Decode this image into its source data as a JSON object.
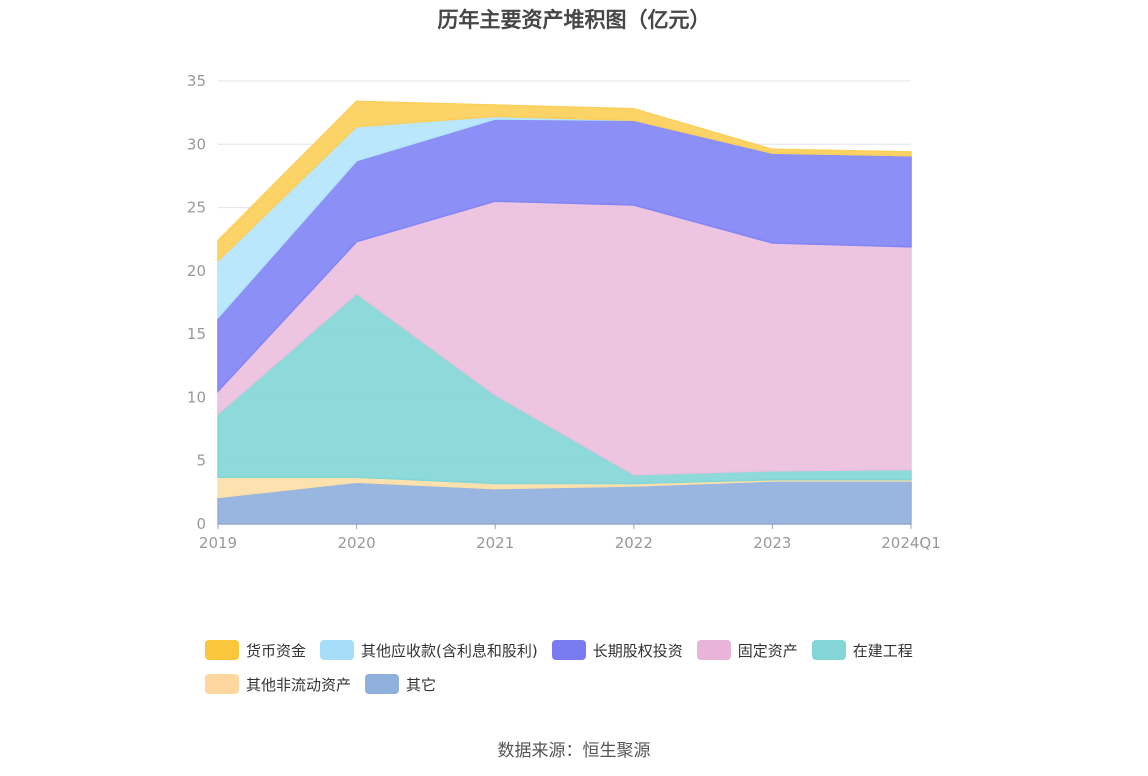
{
  "chart_data": {
    "type": "area",
    "stacked": true,
    "title": "历年主要资产堆积图（亿元）",
    "categories": [
      "2019",
      "2020",
      "2021",
      "2022",
      "2023",
      "2024Q1"
    ],
    "y_ticks": [
      "0",
      "5",
      "10",
      "15",
      "20",
      "25",
      "30",
      "35"
    ],
    "ylim": [
      0,
      35
    ],
    "grid": true,
    "legend_position": "bottom",
    "series": [
      {
        "name": "其它",
        "color": "#8fb0dc",
        "values": [
          2.1,
          3.3,
          2.8,
          3.0,
          3.4,
          3.4
        ]
      },
      {
        "name": "其他非流动资产",
        "color": "#fde0a8",
        "values": [
          1.6,
          0.4,
          0.4,
          0.2,
          0.1,
          0.1
        ]
      },
      {
        "name": "在建工程",
        "color": "#84d6d6",
        "values": [
          5.0,
          14.5,
          7.0,
          0.7,
          0.7,
          0.8
        ]
      },
      {
        "name": "固定资产",
        "color": "#ecc0de",
        "values": [
          1.8,
          4.1,
          15.3,
          21.3,
          18.0,
          17.6
        ]
      },
      {
        "name": "长期股权投资",
        "color": "#8185f5",
        "values": [
          5.8,
          6.4,
          6.5,
          6.7,
          7.1,
          7.2
        ]
      },
      {
        "name": "其他应收款(含利息和股利)",
        "color": "#b4e5fb",
        "values": [
          4.5,
          2.7,
          0.2,
          0.0,
          0.0,
          0.0
        ]
      },
      {
        "name": "货币资金",
        "color": "#fccf5a",
        "values": [
          1.6,
          2.0,
          0.9,
          0.9,
          0.3,
          0.3
        ]
      }
    ]
  },
  "legend": [
    {
      "label": "货币资金",
      "color": "#fcc63c"
    },
    {
      "label": "其他应收款(含利息和股利)",
      "color": "#a6ddf8"
    },
    {
      "label": "长期股权投资",
      "color": "#787cf0"
    },
    {
      "label": "固定资产",
      "color": "#e8b4d8"
    },
    {
      "label": "在建工程",
      "color": "#84d6d6"
    },
    {
      "label": "其他非流动资产",
      "color": "#fdd6a0"
    },
    {
      "label": "其它",
      "color": "#8fb0dc"
    }
  ],
  "source_note": "数据来源：恒生聚源"
}
